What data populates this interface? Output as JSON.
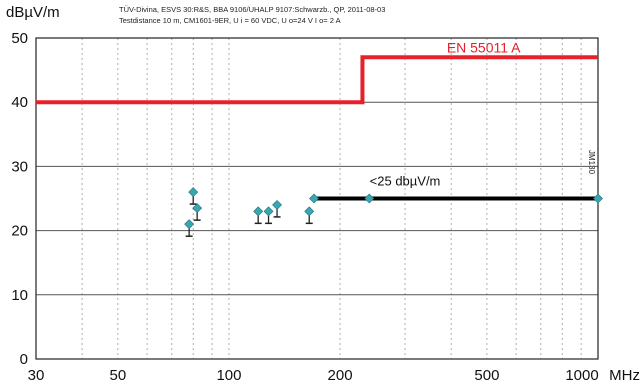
{
  "header": {
    "line1": "TÜV-Divina, ESVS 30:R&S, BBA 9106/UHALP 9107:Schwarzb., QP, 2011-08-03",
    "line2": "Testdistance 10 m, CM1601-9ER, U      i = 60 VDC, U     o=24 V I     o= 2 A"
  },
  "vertical_label": "JM130",
  "chart_data": {
    "type": "line",
    "ylabel": "dBµV/m",
    "xlabel": "MHz",
    "x_scale": "log",
    "xlim": [
      30,
      1000
    ],
    "ylim": [
      0,
      50
    ],
    "grid": true,
    "x_ticks": [
      30,
      50,
      100,
      200,
      500,
      1000
    ],
    "x_tick_labels": [
      "30",
      "50",
      "100",
      "200",
      "500",
      "1000"
    ],
    "y_ticks": [
      0,
      10,
      20,
      30,
      40,
      50
    ],
    "y_tick_labels": [
      "0",
      "10",
      "20",
      "30",
      "40",
      "50"
    ],
    "series": [
      {
        "name": "EN 55011 A",
        "color": "#e8202a",
        "x": [
          30,
          230,
          230,
          1000
        ],
        "y": [
          40,
          40,
          47,
          47
        ]
      },
      {
        "name": "<25 dbµV/m",
        "color": "#000000",
        "x": [
          170,
          1000
        ],
        "y": [
          25,
          25
        ]
      }
    ],
    "measurements": {
      "color": "#39a7b2",
      "points": [
        {
          "x": 78,
          "y": 21
        },
        {
          "x": 80,
          "y": 26
        },
        {
          "x": 82,
          "y": 23.5
        },
        {
          "x": 120,
          "y": 23
        },
        {
          "x": 128,
          "y": 23
        },
        {
          "x": 135,
          "y": 24
        },
        {
          "x": 165,
          "y": 23
        },
        {
          "x": 170,
          "y": 25
        },
        {
          "x": 240,
          "y": 25
        },
        {
          "x": 1000,
          "y": 25
        }
      ]
    }
  }
}
